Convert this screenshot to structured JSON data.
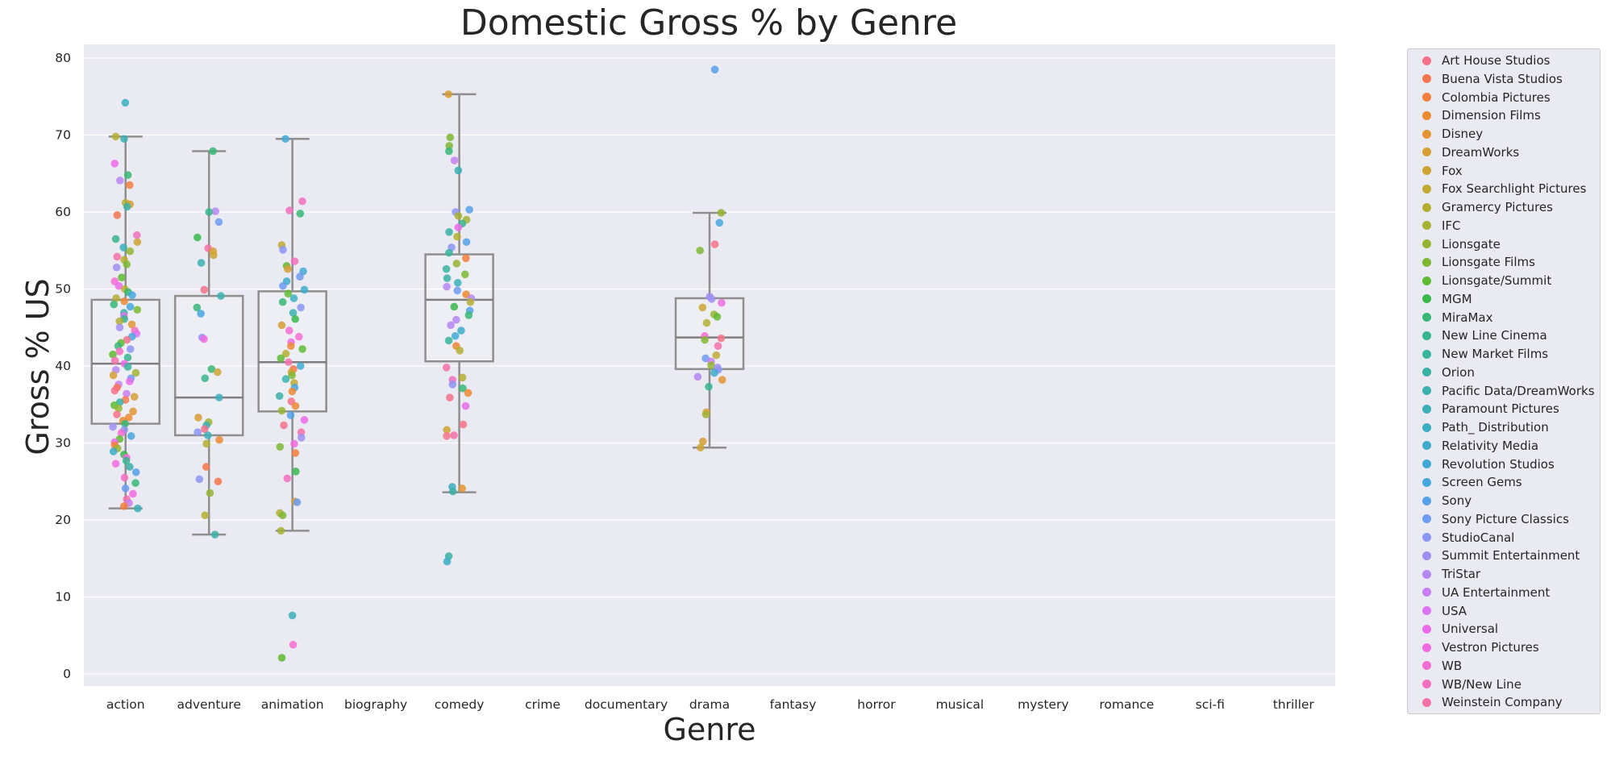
{
  "chart_data": {
    "type": "box+strip",
    "title": "Domestic Gross % by Genre",
    "xlabel": "Genre",
    "ylabel": "Gross % US",
    "ylim": [
      -1.5,
      82
    ],
    "yticks": [
      0,
      10,
      20,
      30,
      40,
      50,
      60,
      70,
      80
    ],
    "categories": [
      "action",
      "adventure",
      "animation",
      "biography",
      "comedy",
      "crime",
      "documentary",
      "drama",
      "fantasy",
      "horror",
      "musical",
      "mystery",
      "romance",
      "sci-fi",
      "thriller"
    ],
    "boxes": [
      {
        "genre": "action",
        "whisker_low": 21.5,
        "q1": 32.5,
        "median": 40.3,
        "q3": 48.6,
        "whisker_high": 69.8
      },
      {
        "genre": "adventure",
        "whisker_low": 18.1,
        "q1": 31.0,
        "median": 35.9,
        "q3": 49.1,
        "whisker_high": 67.9
      },
      {
        "genre": "animation",
        "whisker_low": 18.6,
        "q1": 34.1,
        "median": 40.5,
        "q3": 49.7,
        "whisker_high": 69.5
      },
      {
        "genre": "comedy",
        "whisker_low": 23.6,
        "q1": 40.6,
        "median": 48.6,
        "q3": 54.5,
        "whisker_high": 75.3
      },
      {
        "genre": "drama",
        "whisker_low": 29.4,
        "q1": 39.6,
        "median": 43.7,
        "q3": 48.8,
        "whisker_high": 59.9
      }
    ],
    "points": [
      {
        "genre": "action",
        "values": [
          74.2,
          69.8,
          69.5,
          66.3,
          64.8,
          64.1,
          63.5,
          61.2,
          61.0,
          60.7,
          59.6,
          57.0,
          56.5,
          56.1,
          55.4,
          54.9,
          54.2,
          53.8,
          53.2,
          52.8,
          51.5,
          51.0,
          50.4,
          50.0,
          49.6,
          49.2,
          48.8,
          48.4,
          48.0,
          47.7,
          47.3,
          46.9,
          46.5,
          46.1,
          45.8,
          45.4,
          45.0,
          44.6,
          44.2,
          43.8,
          43.4,
          43.0,
          42.6,
          42.2,
          41.9,
          41.5,
          41.1,
          40.7,
          40.3,
          39.9,
          39.5,
          39.1,
          38.8,
          38.4,
          38.0,
          37.6,
          37.2,
          36.8,
          36.4,
          36.0,
          35.6,
          35.3,
          34.9,
          34.5,
          34.1,
          33.7,
          33.3,
          32.9,
          32.5,
          32.1,
          31.7,
          31.3,
          30.9,
          30.5,
          30.1,
          29.7,
          29.3,
          28.9,
          28.5,
          28.1,
          27.7,
          27.3,
          26.9,
          26.2,
          25.5,
          24.8,
          24.1,
          23.4,
          22.7,
          22.2,
          21.8,
          21.5
        ]
      },
      {
        "genre": "adventure",
        "values": [
          67.9,
          60.1,
          60.0,
          58.7,
          56.7,
          55.3,
          54.9,
          54.4,
          53.4,
          49.9,
          49.1,
          47.6,
          46.8,
          43.7,
          43.5,
          39.6,
          39.2,
          38.4,
          35.9,
          33.3,
          32.7,
          32.3,
          31.8,
          31.4,
          31.0,
          30.4,
          29.9,
          26.9,
          25.3,
          25.0,
          23.5,
          20.6,
          18.1
        ]
      },
      {
        "genre": "animation",
        "values": [
          69.5,
          61.4,
          60.2,
          59.8,
          55.7,
          55.1,
          53.6,
          53.0,
          52.6,
          52.3,
          51.6,
          51.0,
          50.4,
          49.9,
          49.4,
          48.8,
          48.3,
          47.6,
          46.9,
          46.1,
          45.3,
          44.6,
          43.8,
          43.1,
          42.6,
          42.2,
          41.6,
          41.0,
          40.5,
          40.0,
          39.6,
          39.2,
          38.8,
          38.3,
          37.8,
          37.2,
          36.7,
          36.1,
          35.4,
          34.8,
          34.2,
          33.6,
          33.0,
          32.3,
          31.4,
          30.7,
          29.9,
          29.5,
          28.7,
          26.3,
          25.4,
          22.4,
          22.3,
          20.9,
          20.6,
          18.6,
          7.6,
          3.8,
          2.1
        ]
      },
      {
        "genre": "comedy",
        "values": [
          75.3,
          69.7,
          68.6,
          67.9,
          66.7,
          65.4,
          60.3,
          60.0,
          59.5,
          59.0,
          58.5,
          58.0,
          57.4,
          56.8,
          56.1,
          55.4,
          54.7,
          54.0,
          53.3,
          52.6,
          51.9,
          51.4,
          50.8,
          50.3,
          49.8,
          49.3,
          48.8,
          48.3,
          47.7,
          47.2,
          46.6,
          46.0,
          45.3,
          44.6,
          43.9,
          43.3,
          42.6,
          42.0,
          39.8,
          38.5,
          38.2,
          37.6,
          37.1,
          36.5,
          35.9,
          34.8,
          32.4,
          31.7,
          31.0,
          30.9,
          24.3,
          24.1,
          23.7,
          15.3,
          14.6
        ]
      },
      {
        "genre": "drama",
        "values": [
          78.5,
          59.9,
          58.6,
          55.8,
          55.0,
          49.0,
          48.7,
          48.2,
          47.6,
          46.7,
          46.4,
          45.6,
          43.9,
          43.6,
          43.4,
          42.6,
          41.4,
          41.0,
          40.6,
          40.1,
          39.8,
          39.5,
          39.1,
          38.6,
          38.2,
          37.3,
          34.0,
          33.7,
          30.2,
          29.4
        ]
      }
    ],
    "legend_title": "",
    "legend_position": "outside-right",
    "legend": [
      {
        "name": "Art House Studios",
        "color": "#f77189"
      },
      {
        "name": "Buena Vista Studios",
        "color": "#f7754f"
      },
      {
        "name": "Colombia Pictures",
        "color": "#f47f3c"
      },
      {
        "name": "Dimension Films",
        "color": "#ec8a32"
      },
      {
        "name": "Disney",
        "color": "#e29532"
      },
      {
        "name": "DreamWorks",
        "color": "#d79e32"
      },
      {
        "name": "Fox",
        "color": "#cca432"
      },
      {
        "name": "Fox Searchlight Pictures",
        "color": "#c1a933"
      },
      {
        "name": "Gramercy Pictures",
        "color": "#b4ae33"
      },
      {
        "name": "IFC",
        "color": "#a5b233"
      },
      {
        "name": "Lionsgate",
        "color": "#94b533"
      },
      {
        "name": "Lionsgate Films",
        "color": "#7eb832"
      },
      {
        "name": "Lionsgate/Summit",
        "color": "#5fbb32"
      },
      {
        "name": "MGM",
        "color": "#38ba4a"
      },
      {
        "name": "MiraMax",
        "color": "#36b774"
      },
      {
        "name": "New Line Cinema",
        "color": "#37b58c"
      },
      {
        "name": "New Market Films",
        "color": "#38b49b"
      },
      {
        "name": "Orion",
        "color": "#39b2a6"
      },
      {
        "name": "Pacific Data/DreamWorks",
        "color": "#3ab1b0"
      },
      {
        "name": "Paramount Pictures",
        "color": "#3bb0b9"
      },
      {
        "name": "Path_ Distribution",
        "color": "#3caec2"
      },
      {
        "name": "Relativity Media",
        "color": "#3eacca"
      },
      {
        "name": "Revolution Studios",
        "color": "#40aad4"
      },
      {
        "name": "Screen Gems",
        "color": "#46a7de"
      },
      {
        "name": "Sony",
        "color": "#55a2ea"
      },
      {
        "name": "Sony Picture Classics",
        "color": "#6f9bf2"
      },
      {
        "name": "StudioCanal",
        "color": "#8b95f4"
      },
      {
        "name": "Summit Entertainment",
        "color": "#a18ef4"
      },
      {
        "name": "TriStar",
        "color": "#b587f4"
      },
      {
        "name": "UA Entertainment",
        "color": "#c97ff3"
      },
      {
        "name": "USA",
        "color": "#dc74f1"
      },
      {
        "name": "Universal",
        "color": "#ec6bea"
      },
      {
        "name": "Vestron Pictures",
        "color": "#f26be0"
      },
      {
        "name": "WB",
        "color": "#f46dd1"
      },
      {
        "name": "WB/New Line",
        "color": "#f56fbf"
      },
      {
        "name": "Weinstein Company",
        "color": "#f671aa"
      }
    ]
  }
}
